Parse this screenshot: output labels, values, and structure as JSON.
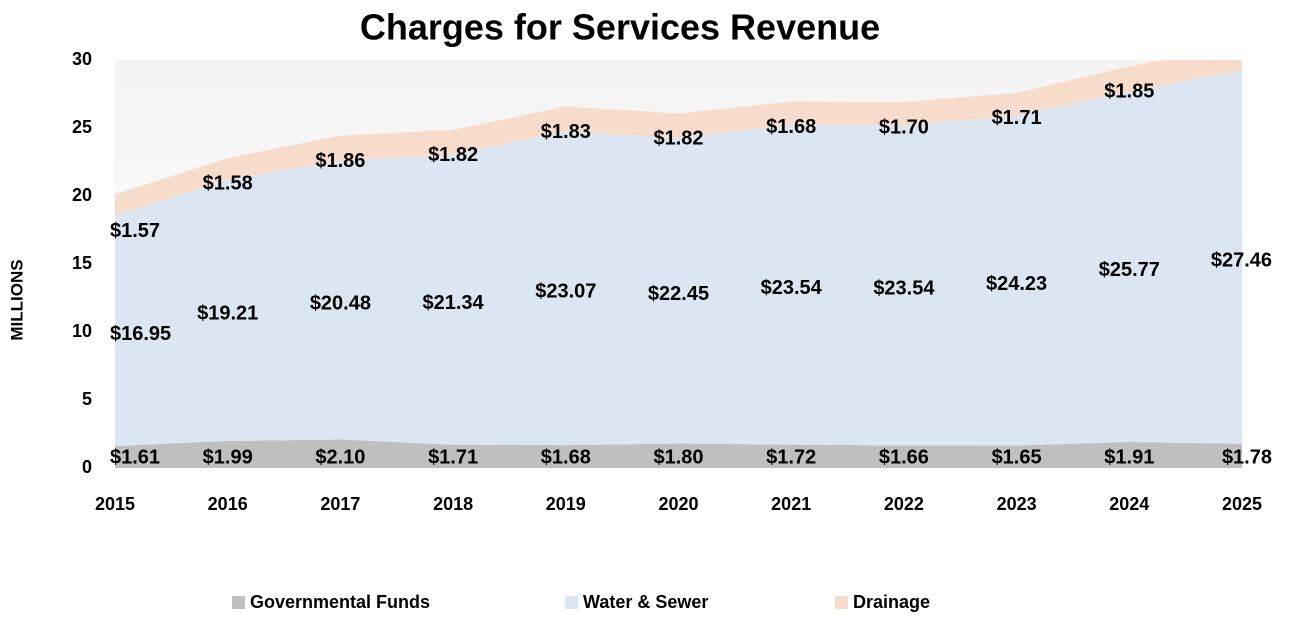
{
  "chart_data": {
    "type": "area",
    "stacked": true,
    "title": "Charges for Services Revenue",
    "y_label": "MILLIONS",
    "categories": [
      "2015",
      "2016",
      "2017",
      "2018",
      "2019",
      "2020",
      "2021",
      "2022",
      "2023",
      "2024",
      "2025"
    ],
    "series": [
      {
        "name": "Governmental Funds",
        "color": "#bfbfbf",
        "values": [
          1.61,
          1.99,
          2.1,
          1.71,
          1.68,
          1.8,
          1.72,
          1.66,
          1.65,
          1.91,
          1.78
        ],
        "value_labels": [
          "$1.61",
          "$1.99",
          "$2.10",
          "$1.71",
          "$1.68",
          "$1.80",
          "$1.72",
          "$1.66",
          "$1.65",
          "$1.91",
          "$1.78"
        ]
      },
      {
        "name": "Water & Sewer",
        "color": "#dce6f2",
        "values": [
          16.95,
          19.21,
          20.48,
          21.34,
          23.07,
          22.45,
          23.54,
          23.54,
          24.23,
          25.77,
          27.46
        ],
        "value_labels": [
          "$16.95",
          "$19.21",
          "$20.48",
          "$21.34",
          "$23.07",
          "$22.45",
          "$23.54",
          "$23.54",
          "$24.23",
          "$25.77",
          "$27.46"
        ]
      },
      {
        "name": "Drainage",
        "color": "#f8dccb",
        "values": [
          1.57,
          1.58,
          1.86,
          1.82,
          1.83,
          1.82,
          1.68,
          1.7,
          1.71,
          1.85,
          1.9
        ],
        "value_labels": [
          "$1.57",
          "$1.58",
          "$1.86",
          "$1.82",
          "$1.83",
          "$1.82",
          "$1.68",
          "$1.70",
          "$1.71",
          "$1.85",
          null
        ]
      }
    ],
    "ylim": [
      0,
      30
    ],
    "yticks": [
      0,
      5,
      10,
      15,
      20,
      25,
      30
    ],
    "grid": false,
    "legend": "bottom"
  }
}
